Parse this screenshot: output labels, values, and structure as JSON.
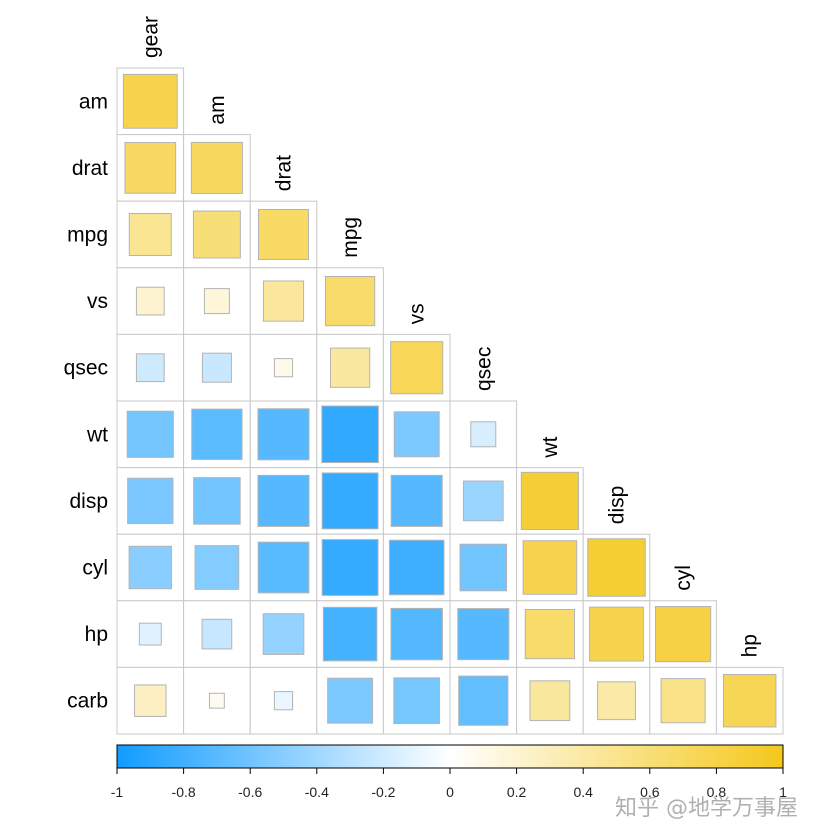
{
  "chart_data": {
    "type": "heatmap",
    "method": "square",
    "shape": "lower-triangle",
    "variables": [
      "gear",
      "am",
      "drat",
      "mpg",
      "vs",
      "qsec",
      "wt",
      "disp",
      "cyl",
      "hp",
      "carb"
    ],
    "row_labels": [
      "am",
      "drat",
      "mpg",
      "vs",
      "qsec",
      "wt",
      "disp",
      "cyl",
      "hp",
      "carb"
    ],
    "col_labels": [
      "gear",
      "am",
      "drat",
      "mpg",
      "vs",
      "qsec",
      "wt",
      "disp",
      "cyl",
      "hp"
    ],
    "values": [
      [
        0.79
      ],
      [
        0.7,
        0.71
      ],
      [
        0.48,
        0.6,
        0.68
      ],
      [
        0.21,
        0.17,
        0.44,
        0.66
      ],
      [
        -0.21,
        -0.23,
        0.09,
        0.42,
        0.74
      ],
      [
        -0.58,
        -0.69,
        -0.71,
        -0.87,
        -0.55,
        -0.17
      ],
      [
        -0.56,
        -0.59,
        -0.71,
        -0.85,
        -0.71,
        -0.43,
        0.89
      ],
      [
        -0.49,
        -0.52,
        -0.7,
        -0.85,
        -0.81,
        -0.59,
        0.78,
        0.9
      ],
      [
        -0.13,
        -0.24,
        -0.45,
        -0.78,
        -0.72,
        -0.71,
        0.66,
        0.79,
        0.83
      ],
      [
        0.27,
        0.06,
        -0.09,
        -0.55,
        -0.57,
        -0.66,
        0.43,
        0.39,
        0.53,
        0.75
      ]
    ],
    "colorbar": {
      "range": [
        -1,
        1
      ],
      "ticks": [
        "-1",
        "-0.8",
        "-0.6",
        "-0.4",
        "-0.2",
        "0",
        "0.2",
        "0.4",
        "0.6",
        "0.8",
        "1"
      ],
      "colors": {
        "negative": "#119CFF",
        "zero": "#FFFFFF",
        "positive": "#F4C81D"
      }
    }
  },
  "watermark": "知乎 @地学万事屋"
}
